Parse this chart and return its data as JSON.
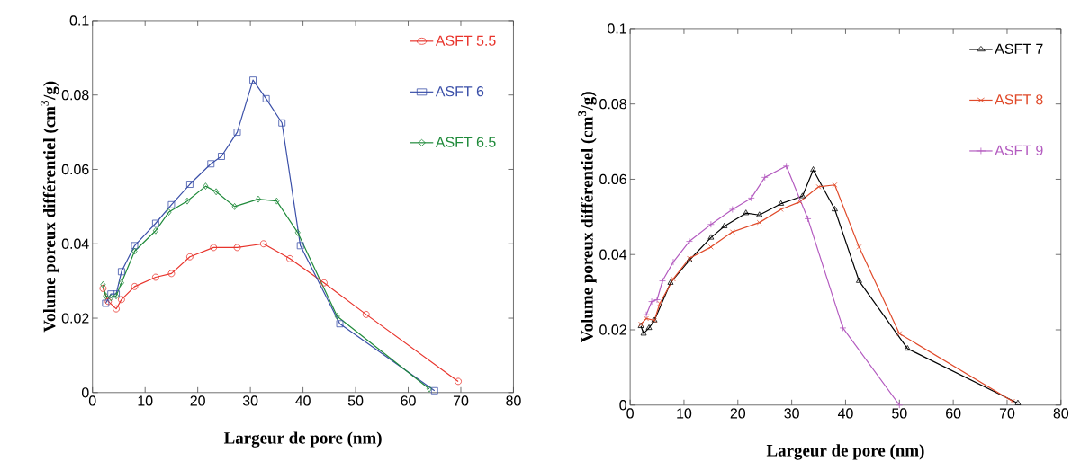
{
  "chart_data": [
    {
      "type": "line",
      "xlabel": "Largeur de pore (nm)",
      "ylabel": "Volume poreux différentiel (cm$^{3}$/g)",
      "xlim": [
        0,
        80
      ],
      "ylim": [
        0,
        0.1
      ],
      "xticks": [
        0,
        10,
        20,
        30,
        40,
        50,
        60,
        70,
        80
      ],
      "yticks": [
        0,
        0.02,
        0.04,
        0.06,
        0.08,
        0.1
      ],
      "legend": "top right",
      "series": [
        {
          "name": "ASFT 5.5",
          "color": "#e8342c",
          "marker": "circle",
          "x": [
            2,
            3,
            4.5,
            5.5,
            8,
            12,
            15,
            18.5,
            23,
            27.5,
            32.5,
            37.5,
            44,
            52,
            69.5
          ],
          "values": [
            0.028,
            0.0245,
            0.0225,
            0.025,
            0.0285,
            0.031,
            0.032,
            0.0365,
            0.039,
            0.039,
            0.04,
            0.036,
            0.0295,
            0.021,
            0.003
          ]
        },
        {
          "name": "ASFT 6",
          "color": "#3a4fa8",
          "marker": "square",
          "x": [
            2.5,
            3.5,
            4.5,
            5.5,
            8,
            12,
            15,
            18.5,
            22.5,
            24.5,
            27.5,
            30.5,
            33,
            36,
            39.5,
            47,
            65
          ],
          "values": [
            0.024,
            0.0265,
            0.0265,
            0.0325,
            0.0395,
            0.0455,
            0.0505,
            0.056,
            0.0615,
            0.0635,
            0.07,
            0.084,
            0.079,
            0.0725,
            0.0395,
            0.0185,
            0.0005
          ]
        },
        {
          "name": "ASFT 6.5",
          "color": "#1f8a3a",
          "marker": "diamond",
          "x": [
            2,
            2.5,
            3.5,
            4.5,
            5.5,
            8,
            12,
            14.5,
            18,
            21.5,
            23.5,
            27,
            31.5,
            35,
            39,
            46.5,
            64
          ],
          "values": [
            0.029,
            0.026,
            0.0255,
            0.026,
            0.0295,
            0.038,
            0.0435,
            0.0485,
            0.0515,
            0.0555,
            0.054,
            0.05,
            0.052,
            0.0515,
            0.043,
            0.0205,
            0.001
          ]
        }
      ]
    },
    {
      "type": "line",
      "xlabel": "Largeur de pore (nm)",
      "ylabel": "Volume poreux différentiel (cm$^{3}$/g)",
      "xlim": [
        0,
        80
      ],
      "ylim": [
        0,
        0.1
      ],
      "xticks": [
        0,
        10,
        20,
        30,
        40,
        50,
        60,
        70,
        80
      ],
      "yticks": [
        0,
        0.02,
        0.04,
        0.06,
        0.08,
        0.1
      ],
      "legend": "top right",
      "series": [
        {
          "name": "ASFT 7",
          "color": "#000000",
          "marker": "triangle",
          "x": [
            2,
            2.5,
            3.5,
            4.5,
            7.5,
            11,
            15,
            17.5,
            21.5,
            24,
            28,
            32,
            34,
            38,
            42.5,
            51.5,
            72
          ],
          "values": [
            0.021,
            0.019,
            0.0205,
            0.0225,
            0.0325,
            0.0385,
            0.0445,
            0.0475,
            0.051,
            0.0505,
            0.0535,
            0.0555,
            0.0625,
            0.052,
            0.033,
            0.015,
            0.0005
          ]
        },
        {
          "name": "ASFT 8",
          "color": "#e04a2a",
          "marker": "cross",
          "x": [
            2,
            3,
            4.5,
            5.5,
            8,
            11,
            15,
            19,
            24,
            28,
            31.5,
            35,
            38,
            42.5,
            50,
            71
          ],
          "values": [
            0.0215,
            0.023,
            0.0225,
            0.027,
            0.0335,
            0.039,
            0.042,
            0.046,
            0.0485,
            0.052,
            0.054,
            0.058,
            0.0585,
            0.042,
            0.019,
            0.001
          ]
        },
        {
          "name": "ASFT 9",
          "color": "#b45cc0",
          "marker": "plus",
          "x": [
            3,
            4,
            5,
            6,
            8,
            11,
            15,
            19,
            22.5,
            25,
            29,
            33,
            39.5,
            50
          ],
          "values": [
            0.024,
            0.0275,
            0.028,
            0.033,
            0.038,
            0.0435,
            0.048,
            0.052,
            0.055,
            0.0605,
            0.0635,
            0.0495,
            0.0205,
            0
          ]
        }
      ]
    }
  ]
}
